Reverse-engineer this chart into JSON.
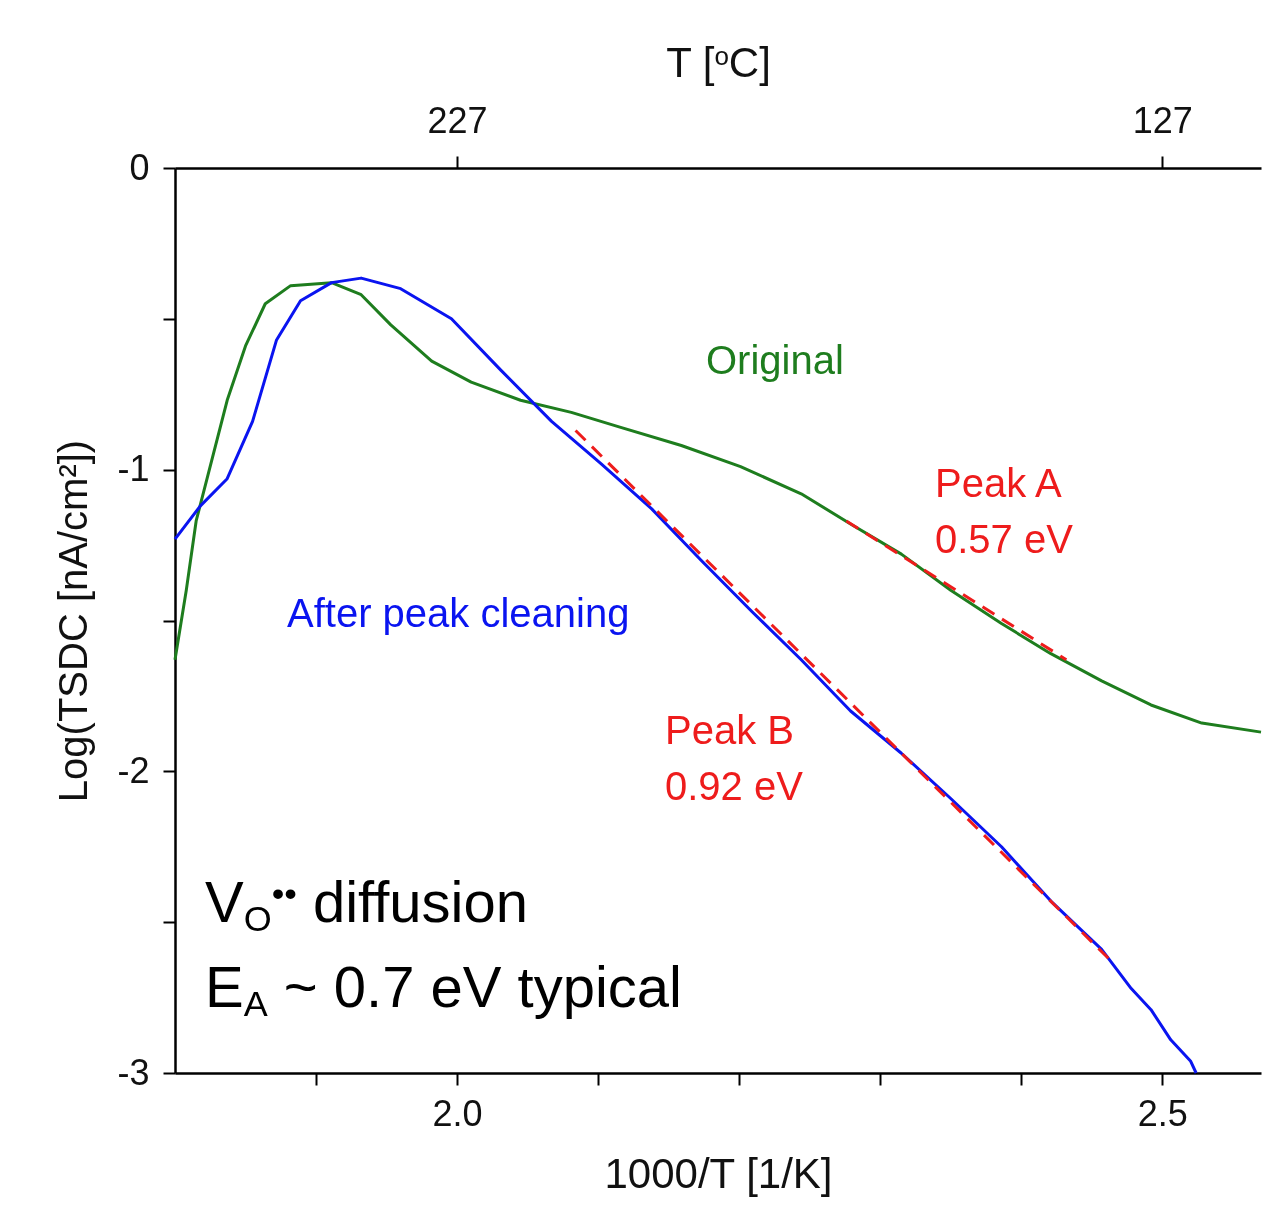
{
  "chart_data": {
    "type": "line",
    "xlabel": "1000/T [1/K]",
    "ylabel": "Log(TSDC [nA/cm²])",
    "x2label": "T [$^{o}$C]",
    "xlim": [
      1.8,
      2.57
    ],
    "xticks": [
      {
        "value": 1.9,
        "label": null
      },
      {
        "value": 2.0,
        "label": "2.0"
      },
      {
        "value": 2.1,
        "label": null
      },
      {
        "value": 2.2,
        "label": null
      },
      {
        "value": 2.3,
        "label": null
      },
      {
        "value": 2.4,
        "label": null
      },
      {
        "value": 2.5,
        "label": "2.5"
      }
    ],
    "x2lim": [
      267,
      113
    ],
    "x2ticks": [
      227,
      127
    ],
    "ylim": [
      -3,
      0
    ],
    "yticks": [
      -3,
      {
        "value": -2.5,
        "label": null
      },
      -2,
      {
        "value": -1.5,
        "label": null
      },
      -1,
      {
        "value": -0.5,
        "label": null
      },
      0
    ],
    "grid": false,
    "series": [
      {
        "color": "#1e7d1e",
        "x": [
          1.8,
          1.808,
          1.815,
          1.826,
          1.837,
          1.85,
          1.864,
          1.882,
          1.911,
          1.932,
          1.953,
          1.982,
          2.01,
          2.045,
          2.081,
          2.116,
          2.159,
          2.201,
          2.244,
          2.279,
          2.315,
          2.35,
          2.386,
          2.421,
          2.457,
          2.492,
          2.528,
          2.57
        ],
        "values": [
          -1.63,
          -1.4,
          -1.17,
          -0.97,
          -0.77,
          -0.59,
          -0.45,
          -0.39,
          -0.38,
          -0.42,
          -0.52,
          -0.64,
          -0.71,
          -0.77,
          -0.81,
          -0.86,
          -0.92,
          -0.99,
          -1.08,
          -1.18,
          -1.28,
          -1.4,
          -1.51,
          -1.61,
          -1.7,
          -1.78,
          -1.84,
          -1.87
        ]
      },
      {
        "color": "#0a14f0",
        "x": [
          1.8,
          1.818,
          1.837,
          1.855,
          1.872,
          1.889,
          1.911,
          1.932,
          1.96,
          1.996,
          2.031,
          2.067,
          2.102,
          2.138,
          2.173,
          2.209,
          2.244,
          2.279,
          2.315,
          2.35,
          2.386,
          2.421,
          2.457,
          2.478,
          2.492,
          2.506,
          2.52,
          2.524
        ],
        "values": [
          -1.23,
          -1.12,
          -1.03,
          -0.84,
          -0.57,
          -0.44,
          -0.38,
          -0.365,
          -0.4,
          -0.5,
          -0.67,
          -0.84,
          -0.98,
          -1.13,
          -1.3,
          -1.47,
          -1.63,
          -1.8,
          -1.94,
          -2.09,
          -2.25,
          -2.43,
          -2.59,
          -2.72,
          -2.79,
          -2.89,
          -2.96,
          -3.0
        ]
      },
      {
        "color": "#ee1c1c",
        "line_style": "dashed",
        "x": [
          2.276,
          2.432
        ],
        "values": [
          -1.17,
          -1.63
        ]
      },
      {
        "color": "#ee1c1c",
        "line_style": "dashed",
        "x": [
          2.084,
          2.464
        ],
        "values": [
          -0.87,
          -2.63
        ]
      }
    ],
    "annotations": [
      "Original",
      "After peak cleaning",
      "Peak A\n0.57 eV",
      "Peak B\n0.92 eV",
      "V$_{O}$$^{••}$ diffusion",
      "E$_{A}$ ~ 0.7 eV typical"
    ]
  }
}
